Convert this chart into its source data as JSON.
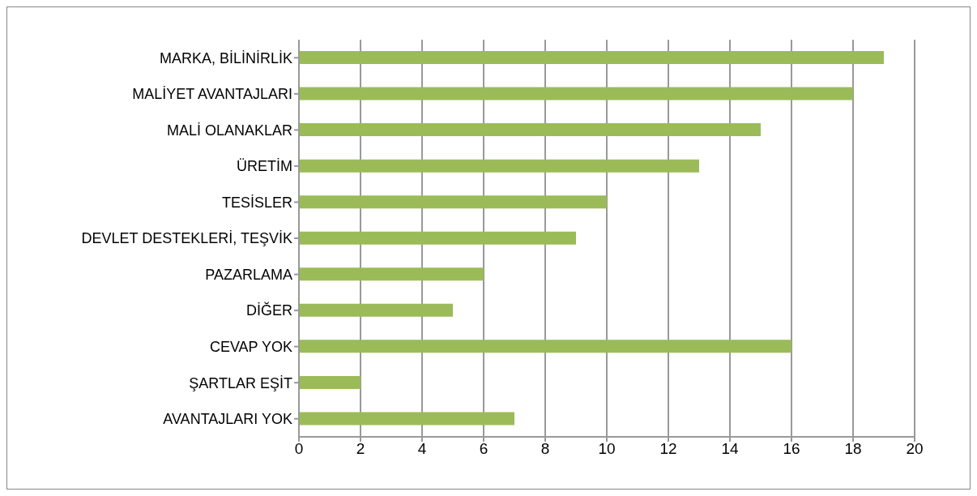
{
  "chart_data": {
    "type": "bar",
    "orientation": "horizontal",
    "categories": [
      "MARKA, BİLİNİRLİK",
      "MALİYET AVANTAJLARI",
      "MALİ OLANAKLAR",
      "ÜRETİM",
      "TESİSLER",
      "DEVLET DESTEKLERİ, TEŞVİK",
      "PAZARLAMA",
      "DİĞER",
      "CEVAP YOK",
      "ŞARTLAR EŞİT",
      "AVANTAJLARI YOK"
    ],
    "values": [
      19,
      18,
      15,
      13,
      10,
      9,
      6,
      5,
      16,
      2,
      7
    ],
    "color": "#9bbb59",
    "xlim": [
      0,
      20
    ],
    "xticks": [
      0,
      2,
      4,
      6,
      8,
      10,
      12,
      14,
      16,
      18,
      20
    ],
    "grid": "x",
    "legend": false
  }
}
